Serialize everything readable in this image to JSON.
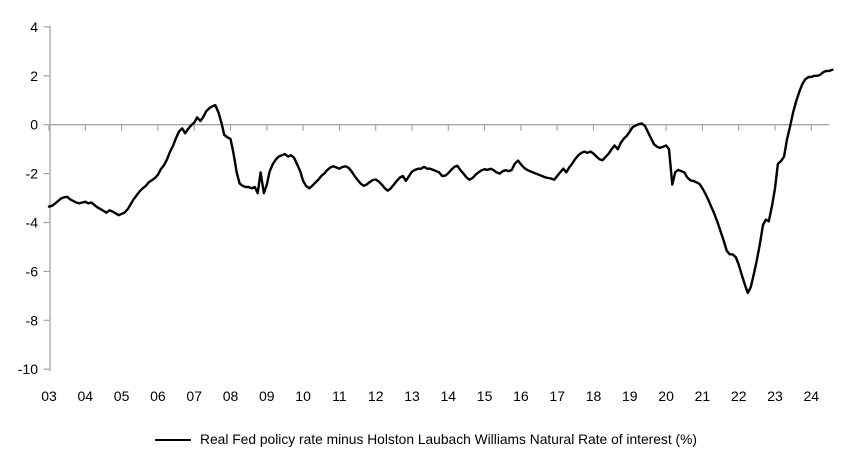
{
  "chart_data": {
    "type": "line",
    "title": "",
    "xlabel": "",
    "ylabel": "",
    "grid": "zero-line-only",
    "legend_position": "bottom-center",
    "axis_color": "#a6a6a6",
    "background": "#ffffff",
    "y_axis": {
      "ticks": [
        4,
        2,
        0,
        -2,
        -4,
        -6,
        -8,
        -10
      ],
      "range": [
        -10,
        4
      ]
    },
    "x_axis": {
      "tick_labels": [
        "03",
        "04",
        "05",
        "06",
        "07",
        "08",
        "09",
        "10",
        "11",
        "12",
        "13",
        "14",
        "15",
        "16",
        "17",
        "18",
        "19",
        "20",
        "21",
        "22",
        "23",
        "24"
      ],
      "tick_years": [
        2003,
        2004,
        2005,
        2006,
        2007,
        2008,
        2009,
        2010,
        2011,
        2012,
        2013,
        2014,
        2015,
        2016,
        2017,
        2018,
        2019,
        2020,
        2021,
        2022,
        2023,
        2024
      ],
      "range": [
        2003.0,
        2024.5
      ]
    },
    "series": [
      {
        "name": "Real Fed policy rate minus Holston Laubach Williams Natural Rate of interest (%)",
        "color": "#000000",
        "points": [
          [
            2003.0,
            -3.35
          ],
          [
            2003.08,
            -3.32
          ],
          [
            2003.17,
            -3.22
          ],
          [
            2003.25,
            -3.12
          ],
          [
            2003.33,
            -3.02
          ],
          [
            2003.42,
            -2.97
          ],
          [
            2003.5,
            -2.95
          ],
          [
            2003.58,
            -3.05
          ],
          [
            2003.67,
            -3.12
          ],
          [
            2003.75,
            -3.18
          ],
          [
            2003.83,
            -3.22
          ],
          [
            2003.92,
            -3.18
          ],
          [
            2004.0,
            -3.15
          ],
          [
            2004.08,
            -3.22
          ],
          [
            2004.17,
            -3.18
          ],
          [
            2004.25,
            -3.28
          ],
          [
            2004.33,
            -3.38
          ],
          [
            2004.42,
            -3.45
          ],
          [
            2004.5,
            -3.52
          ],
          [
            2004.58,
            -3.6
          ],
          [
            2004.67,
            -3.5
          ],
          [
            2004.75,
            -3.55
          ],
          [
            2004.83,
            -3.62
          ],
          [
            2004.92,
            -3.7
          ],
          [
            2005.0,
            -3.65
          ],
          [
            2005.08,
            -3.6
          ],
          [
            2005.17,
            -3.45
          ],
          [
            2005.25,
            -3.25
          ],
          [
            2005.33,
            -3.05
          ],
          [
            2005.42,
            -2.88
          ],
          [
            2005.5,
            -2.72
          ],
          [
            2005.58,
            -2.6
          ],
          [
            2005.67,
            -2.5
          ],
          [
            2005.75,
            -2.35
          ],
          [
            2005.83,
            -2.28
          ],
          [
            2005.92,
            -2.18
          ],
          [
            2006.0,
            -2.05
          ],
          [
            2006.08,
            -1.82
          ],
          [
            2006.17,
            -1.65
          ],
          [
            2006.25,
            -1.42
          ],
          [
            2006.33,
            -1.12
          ],
          [
            2006.42,
            -0.85
          ],
          [
            2006.5,
            -0.55
          ],
          [
            2006.58,
            -0.28
          ],
          [
            2006.67,
            -0.15
          ],
          [
            2006.75,
            -0.35
          ],
          [
            2006.83,
            -0.18
          ],
          [
            2006.92,
            -0.02
          ],
          [
            2007.0,
            0.08
          ],
          [
            2007.08,
            0.3
          ],
          [
            2007.17,
            0.15
          ],
          [
            2007.25,
            0.32
          ],
          [
            2007.33,
            0.55
          ],
          [
            2007.42,
            0.68
          ],
          [
            2007.5,
            0.75
          ],
          [
            2007.58,
            0.8
          ],
          [
            2007.67,
            0.5
          ],
          [
            2007.75,
            0.08
          ],
          [
            2007.83,
            -0.42
          ],
          [
            2007.92,
            -0.52
          ],
          [
            2008.0,
            -0.58
          ],
          [
            2008.08,
            -1.15
          ],
          [
            2008.17,
            -1.95
          ],
          [
            2008.25,
            -2.4
          ],
          [
            2008.33,
            -2.5
          ],
          [
            2008.42,
            -2.55
          ],
          [
            2008.5,
            -2.55
          ],
          [
            2008.58,
            -2.6
          ],
          [
            2008.67,
            -2.55
          ],
          [
            2008.75,
            -2.8
          ],
          [
            2008.83,
            -1.95
          ],
          [
            2008.92,
            -2.8
          ],
          [
            2009.0,
            -2.45
          ],
          [
            2009.08,
            -1.9
          ],
          [
            2009.17,
            -1.6
          ],
          [
            2009.25,
            -1.42
          ],
          [
            2009.33,
            -1.3
          ],
          [
            2009.42,
            -1.25
          ],
          [
            2009.5,
            -1.2
          ],
          [
            2009.58,
            -1.3
          ],
          [
            2009.67,
            -1.25
          ],
          [
            2009.75,
            -1.35
          ],
          [
            2009.83,
            -1.6
          ],
          [
            2009.92,
            -1.9
          ],
          [
            2010.0,
            -2.3
          ],
          [
            2010.08,
            -2.5
          ],
          [
            2010.17,
            -2.6
          ],
          [
            2010.25,
            -2.5
          ],
          [
            2010.33,
            -2.38
          ],
          [
            2010.42,
            -2.25
          ],
          [
            2010.5,
            -2.1
          ],
          [
            2010.58,
            -2.0
          ],
          [
            2010.67,
            -1.85
          ],
          [
            2010.75,
            -1.75
          ],
          [
            2010.83,
            -1.7
          ],
          [
            2010.92,
            -1.75
          ],
          [
            2011.0,
            -1.8
          ],
          [
            2011.08,
            -1.73
          ],
          [
            2011.17,
            -1.7
          ],
          [
            2011.25,
            -1.76
          ],
          [
            2011.33,
            -1.9
          ],
          [
            2011.42,
            -2.1
          ],
          [
            2011.5,
            -2.25
          ],
          [
            2011.58,
            -2.4
          ],
          [
            2011.67,
            -2.5
          ],
          [
            2011.75,
            -2.45
          ],
          [
            2011.83,
            -2.35
          ],
          [
            2011.92,
            -2.26
          ],
          [
            2012.0,
            -2.24
          ],
          [
            2012.08,
            -2.32
          ],
          [
            2012.17,
            -2.45
          ],
          [
            2012.25,
            -2.6
          ],
          [
            2012.33,
            -2.7
          ],
          [
            2012.42,
            -2.6
          ],
          [
            2012.5,
            -2.45
          ],
          [
            2012.58,
            -2.3
          ],
          [
            2012.67,
            -2.16
          ],
          [
            2012.75,
            -2.1
          ],
          [
            2012.83,
            -2.3
          ],
          [
            2012.92,
            -2.1
          ],
          [
            2013.0,
            -1.92
          ],
          [
            2013.08,
            -1.85
          ],
          [
            2013.17,
            -1.8
          ],
          [
            2013.25,
            -1.8
          ],
          [
            2013.33,
            -1.72
          ],
          [
            2013.42,
            -1.8
          ],
          [
            2013.5,
            -1.8
          ],
          [
            2013.58,
            -1.85
          ],
          [
            2013.67,
            -1.9
          ],
          [
            2013.75,
            -1.95
          ],
          [
            2013.83,
            -2.1
          ],
          [
            2013.92,
            -2.08
          ],
          [
            2014.0,
            -1.98
          ],
          [
            2014.08,
            -1.85
          ],
          [
            2014.17,
            -1.72
          ],
          [
            2014.25,
            -1.68
          ],
          [
            2014.33,
            -1.85
          ],
          [
            2014.42,
            -2.0
          ],
          [
            2014.5,
            -2.15
          ],
          [
            2014.58,
            -2.25
          ],
          [
            2014.67,
            -2.18
          ],
          [
            2014.75,
            -2.05
          ],
          [
            2014.83,
            -1.95
          ],
          [
            2014.92,
            -1.86
          ],
          [
            2015.0,
            -1.82
          ],
          [
            2015.08,
            -1.85
          ],
          [
            2015.17,
            -1.8
          ],
          [
            2015.25,
            -1.86
          ],
          [
            2015.33,
            -1.95
          ],
          [
            2015.42,
            -2.0
          ],
          [
            2015.5,
            -1.9
          ],
          [
            2015.58,
            -1.86
          ],
          [
            2015.67,
            -1.9
          ],
          [
            2015.75,
            -1.85
          ],
          [
            2015.83,
            -1.6
          ],
          [
            2015.92,
            -1.47
          ],
          [
            2016.0,
            -1.62
          ],
          [
            2016.08,
            -1.75
          ],
          [
            2016.17,
            -1.85
          ],
          [
            2016.25,
            -1.9
          ],
          [
            2016.33,
            -1.95
          ],
          [
            2016.42,
            -2.0
          ],
          [
            2016.5,
            -2.05
          ],
          [
            2016.58,
            -2.1
          ],
          [
            2016.67,
            -2.15
          ],
          [
            2016.75,
            -2.18
          ],
          [
            2016.83,
            -2.2
          ],
          [
            2016.92,
            -2.25
          ],
          [
            2017.0,
            -2.1
          ],
          [
            2017.08,
            -1.95
          ],
          [
            2017.17,
            -1.8
          ],
          [
            2017.25,
            -1.95
          ],
          [
            2017.33,
            -1.75
          ],
          [
            2017.42,
            -1.58
          ],
          [
            2017.5,
            -1.4
          ],
          [
            2017.58,
            -1.25
          ],
          [
            2017.67,
            -1.15
          ],
          [
            2017.75,
            -1.1
          ],
          [
            2017.83,
            -1.15
          ],
          [
            2017.92,
            -1.1
          ],
          [
            2018.0,
            -1.18
          ],
          [
            2018.08,
            -1.3
          ],
          [
            2018.17,
            -1.42
          ],
          [
            2018.25,
            -1.45
          ],
          [
            2018.33,
            -1.32
          ],
          [
            2018.42,
            -1.18
          ],
          [
            2018.5,
            -1.0
          ],
          [
            2018.58,
            -0.85
          ],
          [
            2018.67,
            -1.0
          ],
          [
            2018.75,
            -0.75
          ],
          [
            2018.83,
            -0.58
          ],
          [
            2018.92,
            -0.45
          ],
          [
            2019.0,
            -0.28
          ],
          [
            2019.08,
            -0.1
          ],
          [
            2019.17,
            -0.03
          ],
          [
            2019.25,
            0.02
          ],
          [
            2019.33,
            0.05
          ],
          [
            2019.42,
            -0.05
          ],
          [
            2019.5,
            -0.3
          ],
          [
            2019.58,
            -0.55
          ],
          [
            2019.67,
            -0.8
          ],
          [
            2019.75,
            -0.9
          ],
          [
            2019.83,
            -0.95
          ],
          [
            2019.92,
            -0.9
          ],
          [
            2020.0,
            -0.85
          ],
          [
            2020.08,
            -1.0
          ],
          [
            2020.17,
            -2.45
          ],
          [
            2020.25,
            -1.95
          ],
          [
            2020.33,
            -1.85
          ],
          [
            2020.42,
            -1.9
          ],
          [
            2020.5,
            -1.95
          ],
          [
            2020.58,
            -2.15
          ],
          [
            2020.67,
            -2.28
          ],
          [
            2020.75,
            -2.3
          ],
          [
            2020.83,
            -2.35
          ],
          [
            2020.92,
            -2.42
          ],
          [
            2021.0,
            -2.6
          ],
          [
            2021.08,
            -2.82
          ],
          [
            2021.17,
            -3.1
          ],
          [
            2021.25,
            -3.38
          ],
          [
            2021.33,
            -3.65
          ],
          [
            2021.42,
            -4.0
          ],
          [
            2021.5,
            -4.35
          ],
          [
            2021.58,
            -4.72
          ],
          [
            2021.67,
            -5.15
          ],
          [
            2021.75,
            -5.3
          ],
          [
            2021.83,
            -5.3
          ],
          [
            2021.92,
            -5.42
          ],
          [
            2022.0,
            -5.72
          ],
          [
            2022.08,
            -6.12
          ],
          [
            2022.17,
            -6.55
          ],
          [
            2022.25,
            -6.88
          ],
          [
            2022.33,
            -6.65
          ],
          [
            2022.42,
            -6.1
          ],
          [
            2022.5,
            -5.55
          ],
          [
            2022.58,
            -4.9
          ],
          [
            2022.67,
            -4.1
          ],
          [
            2022.75,
            -3.88
          ],
          [
            2022.83,
            -3.95
          ],
          [
            2022.92,
            -3.3
          ],
          [
            2023.0,
            -2.6
          ],
          [
            2023.08,
            -1.6
          ],
          [
            2023.17,
            -1.48
          ],
          [
            2023.25,
            -1.3
          ],
          [
            2023.33,
            -0.6
          ],
          [
            2023.42,
            -0.05
          ],
          [
            2023.5,
            0.5
          ],
          [
            2023.58,
            0.95
          ],
          [
            2023.67,
            1.35
          ],
          [
            2023.75,
            1.65
          ],
          [
            2023.83,
            1.85
          ],
          [
            2023.92,
            1.95
          ],
          [
            2024.0,
            1.95
          ],
          [
            2024.08,
            2.0
          ],
          [
            2024.17,
            2.0
          ],
          [
            2024.25,
            2.05
          ],
          [
            2024.33,
            2.15
          ],
          [
            2024.42,
            2.2
          ],
          [
            2024.5,
            2.2
          ],
          [
            2024.58,
            2.25
          ]
        ]
      }
    ]
  },
  "legend": {
    "label": "Real Fed policy rate minus Holston Laubach Williams Natural Rate of interest (%)"
  }
}
